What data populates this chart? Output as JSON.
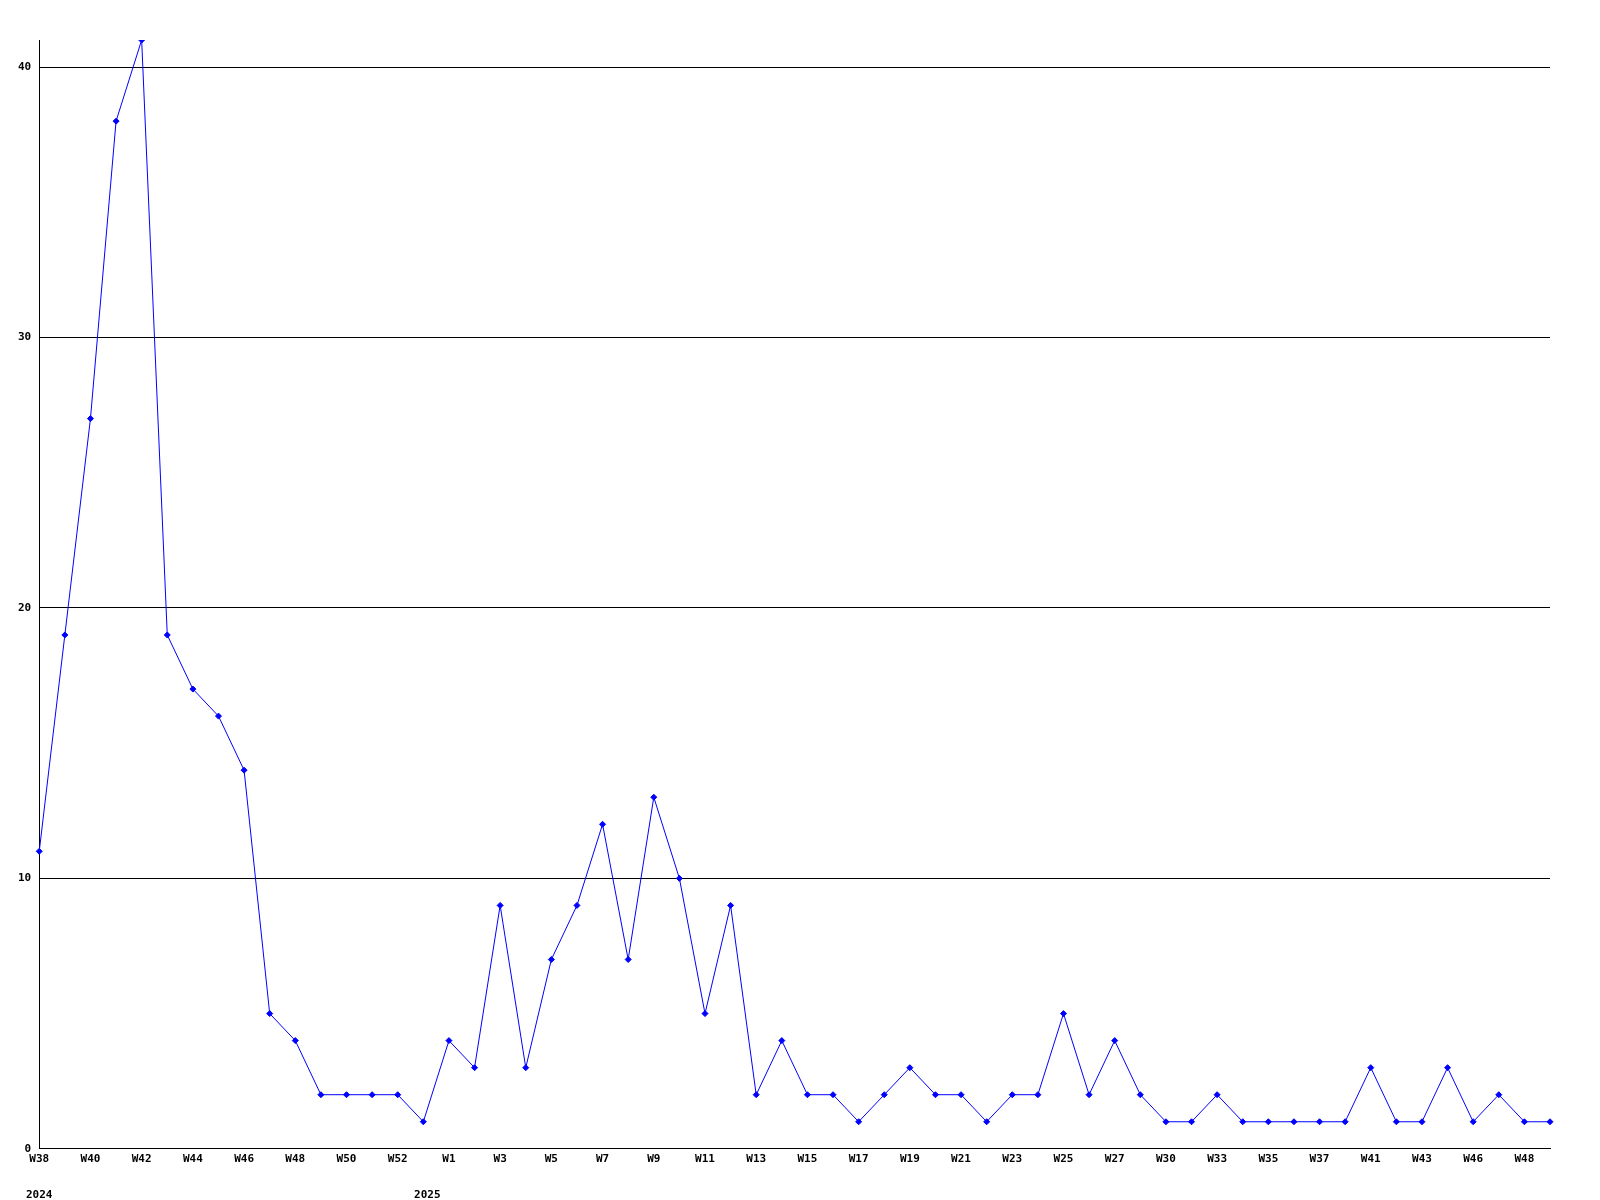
{
  "chart_data": {
    "type": "line",
    "categories": [
      "W38",
      null,
      "W40",
      null,
      "W42",
      null,
      "W44",
      null,
      "W46",
      null,
      "W48",
      null,
      "W50",
      null,
      "W52",
      null,
      "W1",
      null,
      "W3",
      null,
      "W5",
      null,
      "W7",
      null,
      "W9",
      null,
      "W11",
      null,
      "W13",
      null,
      "W15",
      null,
      "W17",
      null,
      "W19",
      null,
      "W21",
      null,
      "W23",
      null,
      "W25",
      null,
      "W27",
      null,
      "W30",
      null,
      "W33",
      null,
      "W35",
      null,
      "W37",
      null,
      "W41",
      null,
      "W43",
      null,
      "W46",
      null,
      "W48",
      null
    ],
    "series": [
      {
        "color": "#0000ff",
        "values": [
          11,
          19,
          27,
          38,
          41,
          19,
          17,
          16,
          14,
          5,
          4,
          2,
          2,
          2,
          2,
          1,
          4,
          3,
          9,
          3,
          7,
          9,
          12,
          7,
          13,
          10,
          5,
          9,
          2,
          4,
          2,
          2,
          1,
          2,
          3,
          2,
          2,
          1,
          2,
          2,
          5,
          2,
          4,
          2,
          1,
          1,
          2,
          1,
          1,
          1,
          1,
          1,
          3,
          1,
          1,
          3,
          1,
          2,
          1,
          1
        ]
      }
    ],
    "ylim": [
      0,
      41
    ],
    "yticks": [
      0,
      10,
      20,
      30,
      40
    ],
    "grid": "y",
    "marker": "diamond",
    "legend": false,
    "annotations": [
      "2024",
      "2025"
    ]
  }
}
